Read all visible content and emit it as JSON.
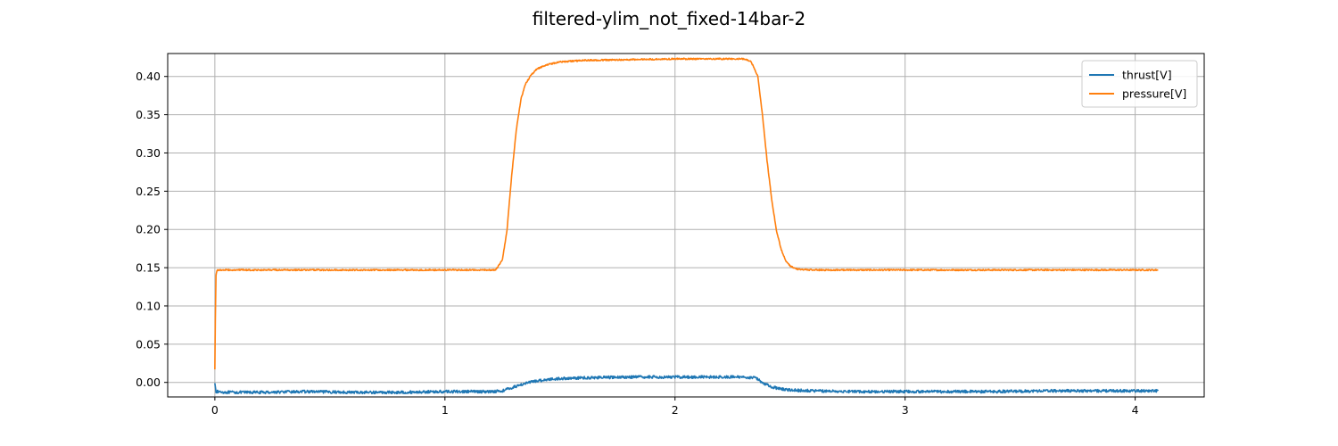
{
  "chart_data": {
    "type": "line",
    "title": "filtered-ylim_not_fixed-14bar-2",
    "xlabel": "",
    "ylabel": "",
    "xlim": [
      -0.205,
      4.3
    ],
    "ylim": [
      -0.019,
      0.43
    ],
    "xticks": [
      0,
      1,
      2,
      3,
      4
    ],
    "xtick_labels": [
      "0",
      "1",
      "2",
      "3",
      "4"
    ],
    "yticks": [
      0.0,
      0.05,
      0.1,
      0.15,
      0.2,
      0.25,
      0.3,
      0.35,
      0.4
    ],
    "ytick_labels": [
      "0.00",
      "0.05",
      "0.10",
      "0.15",
      "0.20",
      "0.25",
      "0.30",
      "0.35",
      "0.40"
    ],
    "grid": true,
    "legend_position": "upper-right",
    "series": [
      {
        "name": "thrust[V]",
        "color": "#1f77b4",
        "x": [
          0,
          0.005,
          0.05,
          0.2,
          0.4,
          0.6,
          0.8,
          1.0,
          1.1,
          1.2,
          1.25,
          1.3,
          1.35,
          1.4,
          1.45,
          1.5,
          1.6,
          1.8,
          2.0,
          2.2,
          2.3,
          2.35,
          2.38,
          2.42,
          2.45,
          2.5,
          2.6,
          2.8,
          3.0,
          3.2,
          3.4,
          3.6,
          3.8,
          4.0,
          4.1
        ],
        "y": [
          -0.001,
          -0.012,
          -0.013,
          -0.013,
          -0.012,
          -0.013,
          -0.013,
          -0.012,
          -0.012,
          -0.012,
          -0.011,
          -0.006,
          -0.001,
          0.002,
          0.004,
          0.005,
          0.006,
          0.007,
          0.007,
          0.007,
          0.007,
          0.006,
          0.0,
          -0.006,
          -0.008,
          -0.01,
          -0.011,
          -0.012,
          -0.012,
          -0.012,
          -0.012,
          -0.011,
          -0.011,
          -0.011,
          -0.011
        ]
      },
      {
        "name": "pressure[V]",
        "color": "#ff7f0e",
        "x": [
          0,
          0.002,
          0.005,
          0.01,
          0.05,
          0.2,
          0.4,
          0.6,
          0.8,
          1.0,
          1.15,
          1.22,
          1.25,
          1.27,
          1.29,
          1.31,
          1.33,
          1.35,
          1.37,
          1.4,
          1.45,
          1.5,
          1.6,
          1.8,
          2.0,
          2.2,
          2.3,
          2.33,
          2.36,
          2.38,
          2.4,
          2.42,
          2.44,
          2.46,
          2.48,
          2.5,
          2.53,
          2.6,
          2.8,
          3.0,
          3.2,
          3.4,
          3.6,
          3.8,
          4.0,
          4.1
        ],
        "y": [
          0.017,
          0.08,
          0.14,
          0.147,
          0.147,
          0.147,
          0.147,
          0.147,
          0.147,
          0.147,
          0.147,
          0.147,
          0.16,
          0.2,
          0.27,
          0.33,
          0.37,
          0.39,
          0.4,
          0.41,
          0.416,
          0.419,
          0.421,
          0.422,
          0.423,
          0.423,
          0.423,
          0.42,
          0.4,
          0.35,
          0.29,
          0.24,
          0.2,
          0.175,
          0.16,
          0.152,
          0.148,
          0.147,
          0.147,
          0.147,
          0.147,
          0.147,
          0.147,
          0.147,
          0.147,
          0.147
        ]
      }
    ]
  }
}
